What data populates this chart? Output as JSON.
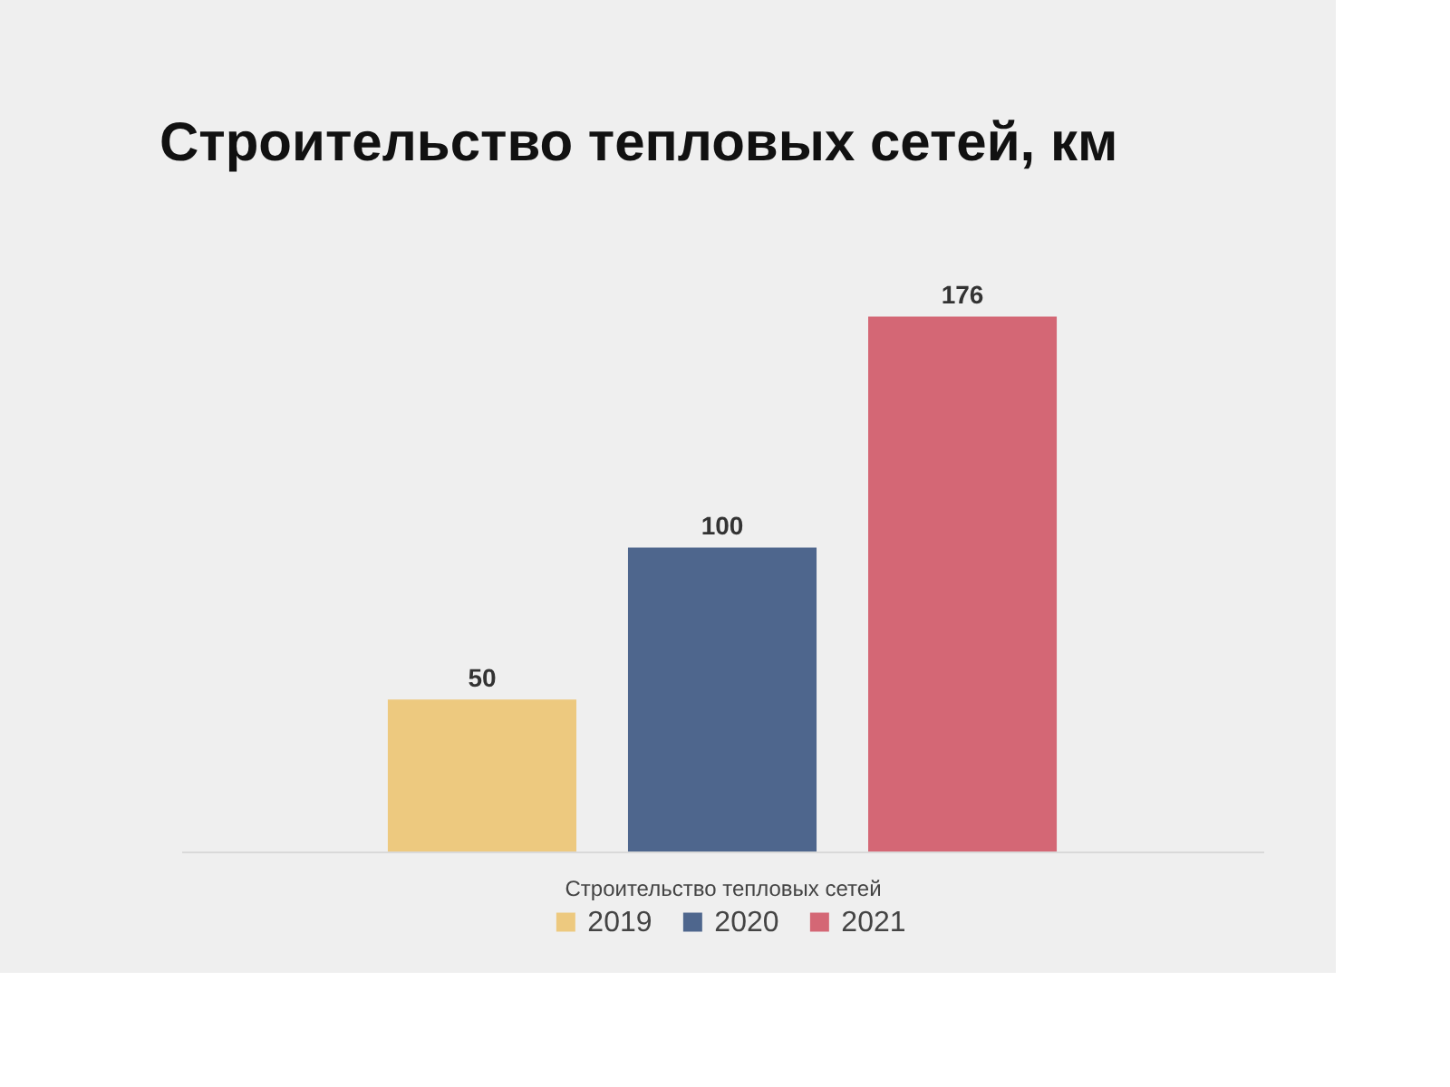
{
  "chart_data": {
    "type": "bar",
    "title": "Строительство тепловых сетей, км",
    "xlabel": "Строительство тепловых сетей",
    "categories": [
      null,
      null,
      null
    ],
    "stacked": true,
    "series": [
      {
        "name": "2019",
        "color": "#edc97f",
        "values": [
          50,
          null,
          null
        ]
      },
      {
        "name": "2020",
        "color": "#4e668d",
        "values": [
          null,
          100,
          null
        ]
      },
      {
        "name": "2021",
        "color": "#d46775",
        "values": [
          null,
          null,
          176
        ]
      }
    ],
    "data_labels": true,
    "legend": "bottom"
  }
}
